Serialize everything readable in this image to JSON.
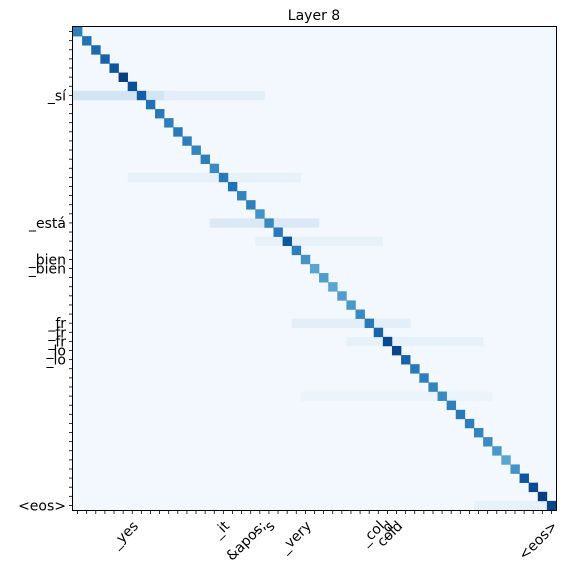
{
  "chart_data": {
    "type": "heatmap",
    "title": "Layer 8",
    "xlabel": "",
    "ylabel": "",
    "rows": 53,
    "cols": 53,
    "colormap": "Blues",
    "value_range": [
      0,
      1
    ],
    "diagonal": [
      0.7,
      0.75,
      0.78,
      0.8,
      0.85,
      0.95,
      0.88,
      0.82,
      0.75,
      0.72,
      0.7,
      0.72,
      0.7,
      0.68,
      0.7,
      0.65,
      0.72,
      0.75,
      0.68,
      0.7,
      0.62,
      0.66,
      0.72,
      0.85,
      0.7,
      0.62,
      0.55,
      0.58,
      0.55,
      0.58,
      0.6,
      0.65,
      0.72,
      0.8,
      0.9,
      0.92,
      0.8,
      0.72,
      0.7,
      0.68,
      0.65,
      0.7,
      0.72,
      0.7,
      0.68,
      0.65,
      0.6,
      0.55,
      0.62,
      0.85,
      0.9,
      0.95,
      0.92
    ],
    "y_tick_labels": [
      {
        "index": 7,
        "text": "_sí"
      },
      {
        "index": 21,
        "text": "_está"
      },
      {
        "index": 25,
        "text": "_bien"
      },
      {
        "index": 26,
        "text": "_bien"
      },
      {
        "index": 32,
        "text": "_fr"
      },
      {
        "index": 33,
        "text": "_fr"
      },
      {
        "index": 34,
        "text": "_fr"
      },
      {
        "index": 35,
        "text": "_lo"
      },
      {
        "index": 36,
        "text": "_lo"
      },
      {
        "index": 52,
        "text": "<eos>"
      }
    ],
    "x_tick_labels": [
      {
        "index": 6,
        "text": "_yes"
      },
      {
        "index": 16,
        "text": "_it"
      },
      {
        "index": 19,
        "text": "_"
      },
      {
        "index": 20,
        "text": "&apos;"
      },
      {
        "index": 21,
        "text": "s"
      },
      {
        "index": 25,
        "text": "_very"
      },
      {
        "index": 33,
        "text": "_col"
      },
      {
        "index": 34,
        "text": "_d"
      },
      {
        "index": 35,
        "text": "cold"
      },
      {
        "index": 52,
        "text": "<eos>"
      }
    ]
  }
}
